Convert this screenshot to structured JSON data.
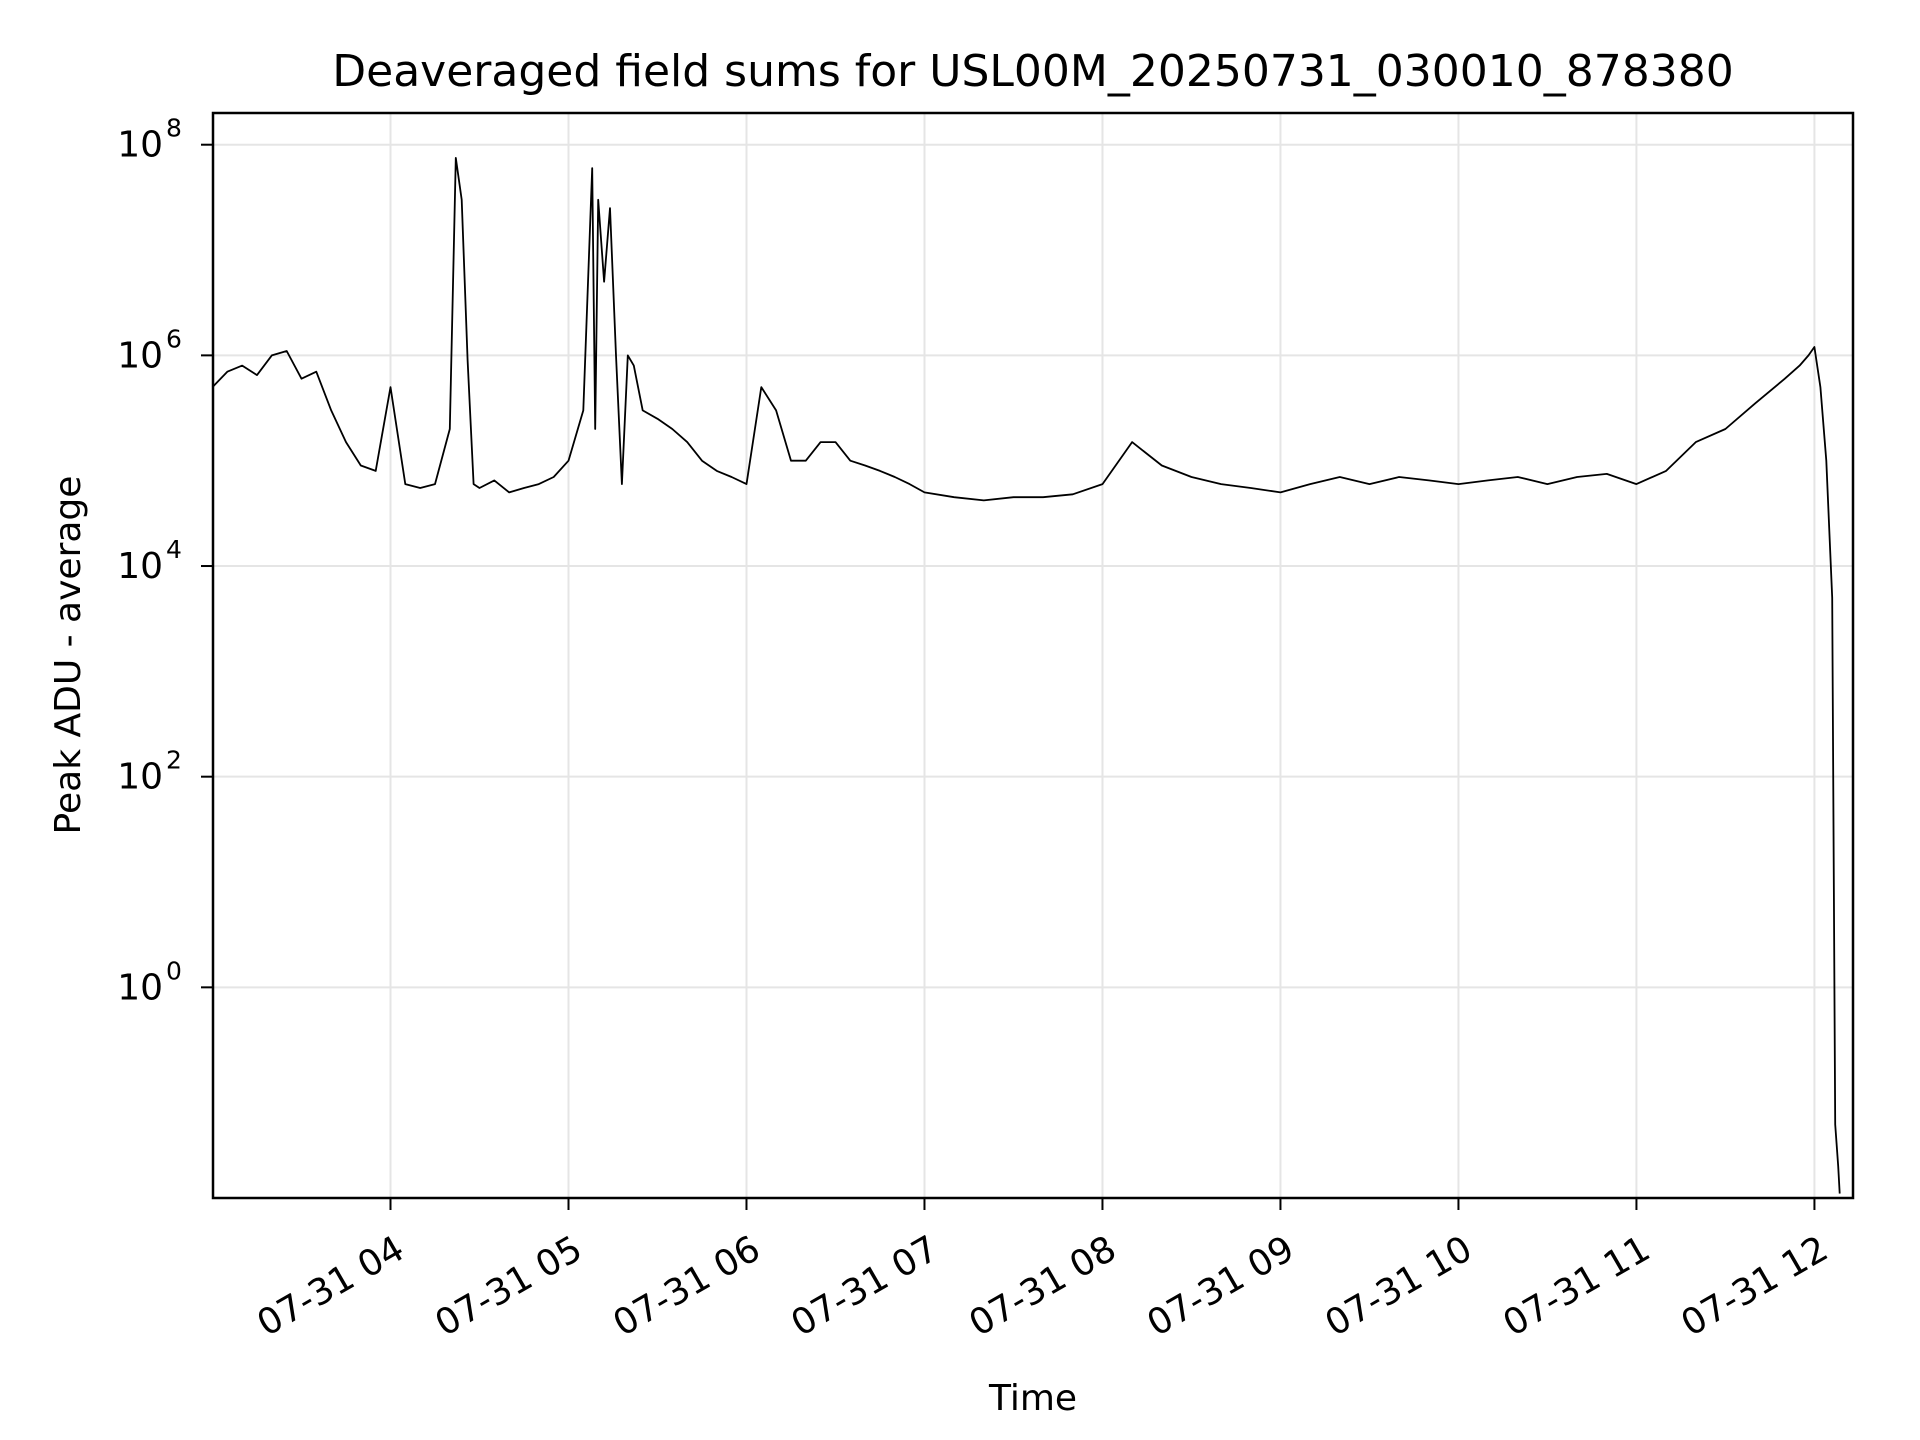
{
  "chart_data": {
    "type": "line",
    "title": "Deaveraged field sums for USL00M_20250731_030010_878380",
    "xlabel": "Time",
    "ylabel": "Peak ADU - average",
    "yscale": "log",
    "xlim": [
      "2025-07-31T03:00:10",
      "2025-07-31T12:13:00"
    ],
    "ylim": [
      0.01,
      200000000
    ],
    "grid": true,
    "line_color": "#000000",
    "x_ticks": [
      "07-31 04",
      "07-31 05",
      "07-31 06",
      "07-31 07",
      "07-31 08",
      "07-31 09",
      "07-31 10",
      "07-31 11",
      "07-31 12"
    ],
    "y_ticks": [
      {
        "base": "10",
        "exp": "0",
        "value": 1
      },
      {
        "base": "10",
        "exp": "2",
        "value": 100
      },
      {
        "base": "10",
        "exp": "4",
        "value": 10000
      },
      {
        "base": "10",
        "exp": "6",
        "value": 1000000
      },
      {
        "base": "10",
        "exp": "8",
        "value": 100000000
      }
    ],
    "series": [
      {
        "x": [
          "03:00",
          "03:05",
          "03:10",
          "03:15",
          "03:20",
          "03:25",
          "03:30",
          "03:35",
          "03:40",
          "03:45",
          "03:50",
          "03:55",
          "04:00",
          "04:05",
          "04:10",
          "04:15",
          "04:20",
          "04:22",
          "04:24",
          "04:26",
          "04:28",
          "04:30",
          "04:35",
          "04:40",
          "04:45",
          "04:50",
          "04:55",
          "05:00",
          "05:05",
          "05:08",
          "05:09",
          "05:10",
          "05:12",
          "05:14",
          "05:16",
          "05:18",
          "05:20",
          "05:22",
          "05:25",
          "05:30",
          "05:35",
          "05:40",
          "05:45",
          "05:50",
          "05:55",
          "06:00",
          "06:05",
          "06:10",
          "06:15",
          "06:20",
          "06:25",
          "06:30",
          "06:35",
          "06:40",
          "06:45",
          "06:50",
          "06:55",
          "07:00",
          "07:10",
          "07:20",
          "07:30",
          "07:40",
          "07:50",
          "08:00",
          "08:10",
          "08:20",
          "08:30",
          "08:40",
          "08:50",
          "09:00",
          "09:10",
          "09:20",
          "09:30",
          "09:40",
          "09:50",
          "10:00",
          "10:10",
          "10:20",
          "10:30",
          "10:40",
          "10:50",
          "11:00",
          "11:10",
          "11:20",
          "11:30",
          "11:40",
          "11:50",
          "11:55",
          "11:58",
          "12:00",
          "12:02",
          "12:04",
          "12:06",
          "12:07",
          "12:08",
          "12:08:30"
        ],
        "y": [
          500000,
          700000,
          800000,
          650000,
          1000000,
          1100000,
          600000,
          700000,
          300000,
          150000,
          90000,
          80000,
          500000,
          60000,
          55000,
          60000,
          200000,
          75000000,
          30000000,
          900000,
          60000,
          55000,
          65000,
          50000,
          55000,
          60000,
          70000,
          100000,
          300000,
          60000000,
          200000,
          30000000,
          5000000,
          25000000,
          1000000,
          60000,
          1000000,
          800000,
          300000,
          250000,
          200000,
          150000,
          100000,
          80000,
          70000,
          60000,
          500000,
          300000,
          100000,
          100000,
          150000,
          150000,
          100000,
          90000,
          80000,
          70000,
          60000,
          50000,
          45000,
          42000,
          45000,
          45000,
          48000,
          60000,
          150000,
          90000,
          70000,
          60000,
          55000,
          50000,
          60000,
          70000,
          60000,
          70000,
          65000,
          60000,
          65000,
          70000,
          60000,
          70000,
          75000,
          60000,
          80000,
          150000,
          200000,
          350000,
          600000,
          800000,
          1000000,
          1200000,
          500000,
          100000,
          5000,
          0.05,
          0.02,
          0.011
        ]
      }
    ]
  }
}
